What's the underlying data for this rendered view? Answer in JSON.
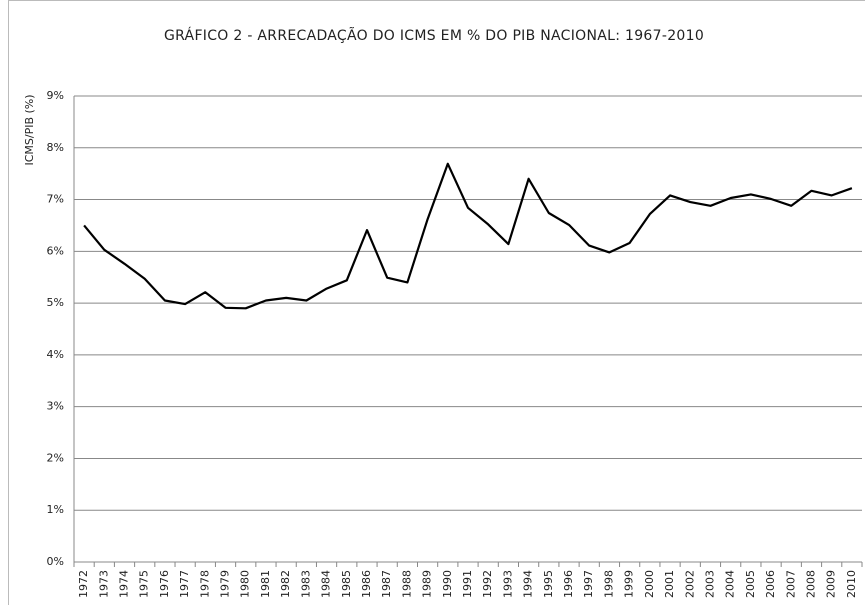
{
  "chart_data": {
    "type": "line",
    "title": "GRÁFICO 2 - ARRECADAÇÃO DO ICMS EM % DO PIB NACIONAL: 1967-2010",
    "y_label": "ICMS/PIB (%)",
    "categories": [
      "1972",
      "1973",
      "1974",
      "1975",
      "1976",
      "1977",
      "1978",
      "1979",
      "1980",
      "1981",
      "1982",
      "1983",
      "1984",
      "1985",
      "1986",
      "1987",
      "1988",
      "1989",
      "1990",
      "1991",
      "1992",
      "1993",
      "1994",
      "1995",
      "1996",
      "1997",
      "1998",
      "1999",
      "2000",
      "2001",
      "2002",
      "2003",
      "2004",
      "2005",
      "2006",
      "2007",
      "2008",
      "2009",
      "2010"
    ],
    "values": [
      6.5,
      6.03,
      5.76,
      5.47,
      5.05,
      4.98,
      5.21,
      4.91,
      4.9,
      5.05,
      5.1,
      5.05,
      5.28,
      5.44,
      6.41,
      5.49,
      5.4,
      6.62,
      7.69,
      6.84,
      6.52,
      6.14,
      7.4,
      6.74,
      6.51,
      6.11,
      5.98,
      6.16,
      6.72,
      7.08,
      6.95,
      6.88,
      7.03,
      7.1,
      7.01,
      6.88,
      7.17,
      7.08,
      7.22
    ],
    "color": "#000000",
    "ylim": [
      0,
      9
    ],
    "yticks": [
      {
        "value": 0,
        "label": "0%"
      },
      {
        "value": 1,
        "label": "1%"
      },
      {
        "value": 2,
        "label": "2%"
      },
      {
        "value": 3,
        "label": "3%"
      },
      {
        "value": 4,
        "label": "4%"
      },
      {
        "value": 5,
        "label": "5%"
      },
      {
        "value": 6,
        "label": "6%"
      },
      {
        "value": 7,
        "label": "7%"
      },
      {
        "value": 8,
        "label": "8%"
      },
      {
        "value": 9,
        "label": "9%"
      }
    ],
    "grid": true
  }
}
